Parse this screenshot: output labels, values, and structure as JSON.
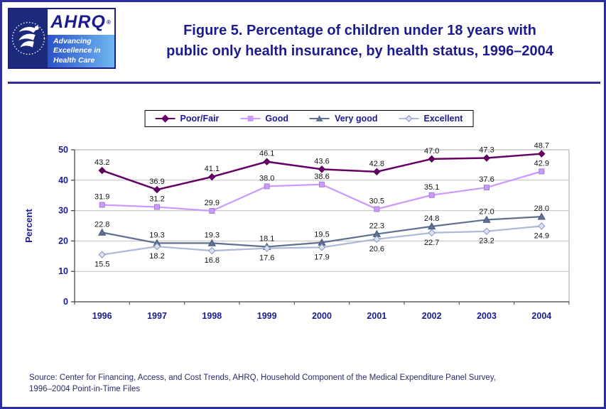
{
  "page": {
    "title_line1": "Figure 5. Percentage of children under 18 years with",
    "title_line2": "public only health insurance, by health status, 1996–2004",
    "source_line1": "Source: Center for Financing, Access, and Cost Trends, AHRQ, Household Component of the Medical Expenditure Panel Survey,",
    "source_line2": "1996–2004 Point-in-Time Files"
  },
  "logo": {
    "acronym": "AHRQ",
    "registered_mark": "®",
    "tagline_line1": "Advancing",
    "tagline_line2": "Excellence in",
    "tagline_line3": "Health Care"
  },
  "colors": {
    "page_border_navy": "#2D2DA0",
    "title_navy": "#1B1B8F",
    "axis_text_navy": "#1B1B8F",
    "gridline_gray": "#C0C0C0",
    "source_text": "#2B2B66"
  },
  "chart_data": {
    "type": "line",
    "title": "",
    "xlabel": "",
    "ylabel": "Percent",
    "ylim": [
      0,
      50
    ],
    "ytick": 10,
    "grid": true,
    "legend_position": "top",
    "categories": [
      "1996",
      "1997",
      "1998",
      "1999",
      "2000",
      "2001",
      "2002",
      "2003",
      "2004"
    ],
    "series": [
      {
        "name": "Poor/Fair",
        "marker": "diamond",
        "color": "#660066",
        "marker_stroke": "#4D004D",
        "line_width": 2.5,
        "label_position": "above",
        "values": [
          43.2,
          36.9,
          41.1,
          46.1,
          43.6,
          42.8,
          47.0,
          47.3,
          48.7
        ]
      },
      {
        "name": "Good",
        "marker": "square",
        "color": "#CC99FF",
        "marker_stroke": "#9F7FD4",
        "line_width": 2.25,
        "label_position": "above",
        "values": [
          31.9,
          31.2,
          29.9,
          38.0,
          38.6,
          30.5,
          35.1,
          37.6,
          42.9
        ]
      },
      {
        "name": "Very good",
        "marker": "triangle",
        "color": "#5F7191",
        "marker_stroke": "#46567A",
        "line_width": 2.25,
        "label_position": "above",
        "values": [
          22.8,
          19.3,
          19.3,
          18.1,
          19.5,
          22.3,
          24.8,
          27.0,
          28.0
        ]
      },
      {
        "name": "Excellent",
        "marker": "open-diamond",
        "color": "#AEB9D8",
        "marker_fill": "#D9E1F2",
        "marker_stroke": "#8696BC",
        "line_width": 2.25,
        "label_position": "below",
        "values": [
          15.5,
          18.2,
          16.8,
          17.6,
          17.9,
          20.6,
          22.7,
          23.2,
          24.9
        ]
      }
    ]
  }
}
